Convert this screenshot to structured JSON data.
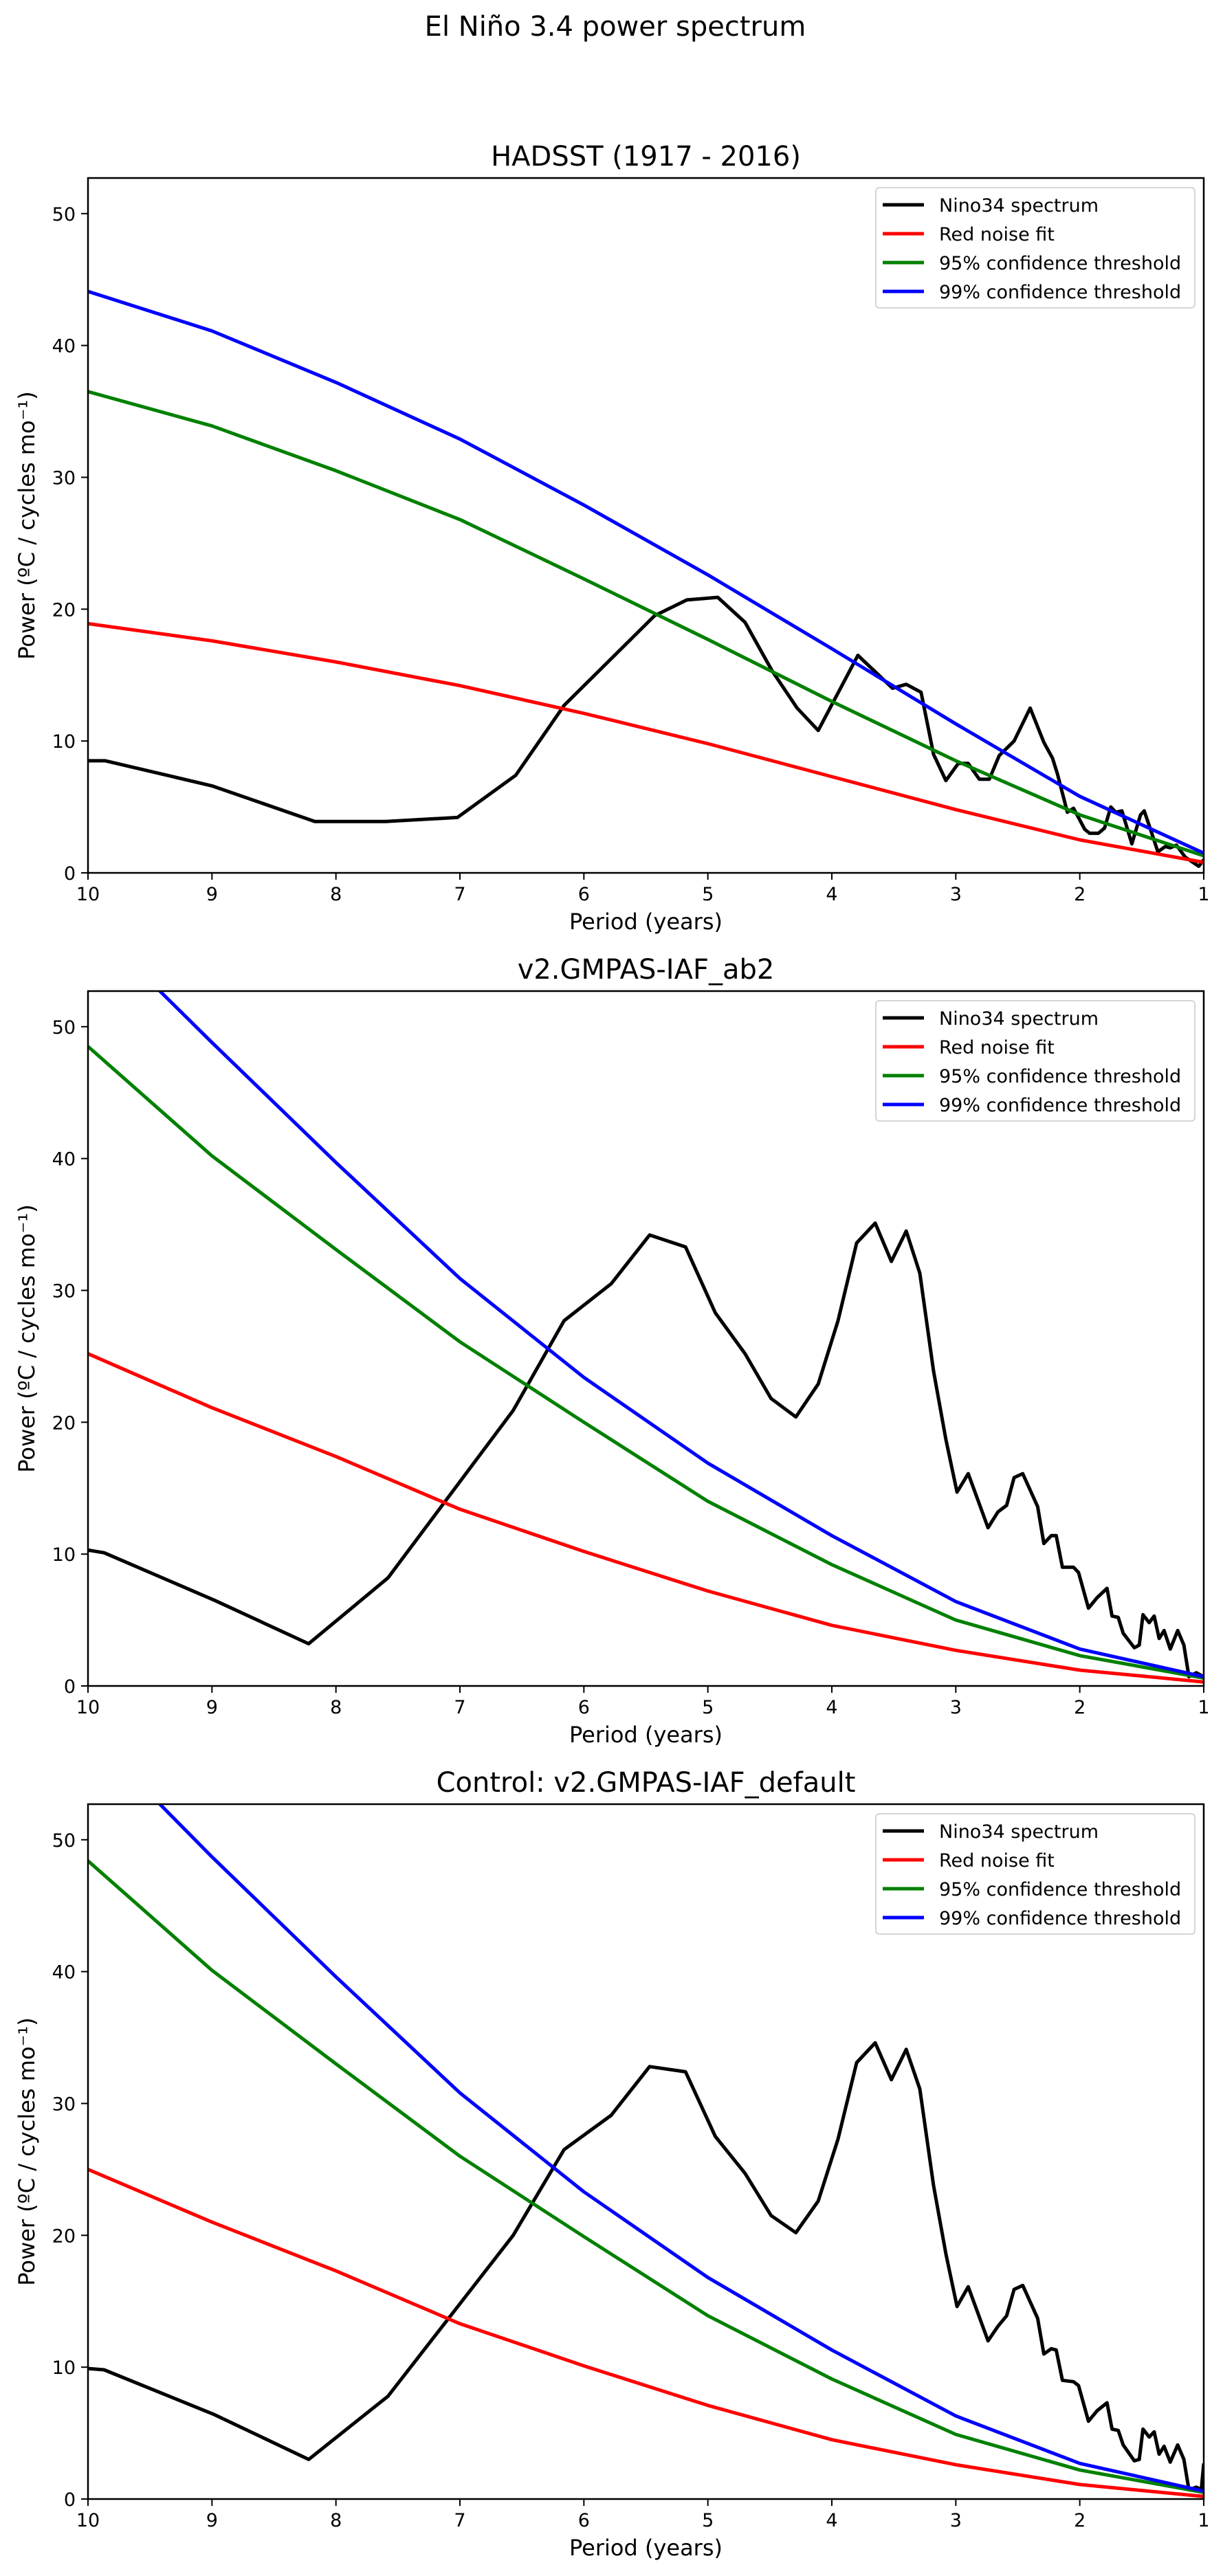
{
  "figure": {
    "title": "El Niño 3.4 power spectrum"
  },
  "chart_data": [
    {
      "type": "line",
      "title": "HADSST (1917 - 2016)",
      "xlabel": "Period (years)",
      "ylabel": "Power (ºC / cycles mo⁻¹)",
      "xlim": [
        10,
        1
      ],
      "ylim": [
        0,
        52.7
      ],
      "xticks": [
        10,
        9,
        8,
        7,
        6,
        5,
        4,
        3,
        2,
        1
      ],
      "yticks": [
        0,
        10,
        20,
        30,
        40,
        50
      ],
      "grid": false,
      "legend_position": "top-right",
      "series": [
        {
          "name": "Nino34 spectrum",
          "color": "#000000",
          "x": [
            10.0,
            9.86,
            9.0,
            8.17,
            7.6,
            7.02,
            6.55,
            6.16,
            5.43,
            5.17,
            4.92,
            4.7,
            4.48,
            4.28,
            4.11,
            3.79,
            3.51,
            3.4,
            3.28,
            3.18,
            3.08,
            2.98,
            2.9,
            2.81,
            2.73,
            2.65,
            2.53,
            2.4,
            2.29,
            2.22,
            2.18,
            2.1,
            2.05,
            1.96,
            1.92,
            1.85,
            1.8,
            1.75,
            1.71,
            1.66,
            1.58,
            1.51,
            1.48,
            1.43,
            1.37,
            1.31,
            1.27,
            1.22,
            1.15,
            1.04,
            1.0
          ],
          "y": [
            8.5,
            8.5,
            6.6,
            3.9,
            3.9,
            4.2,
            7.4,
            12.7,
            19.5,
            20.7,
            20.9,
            19.0,
            15.3,
            12.5,
            10.8,
            16.5,
            14.0,
            14.3,
            13.7,
            9.0,
            7.0,
            8.3,
            8.3,
            7.1,
            7.1,
            8.9,
            10.0,
            12.5,
            9.9,
            8.7,
            7.5,
            4.6,
            4.9,
            3.3,
            3.0,
            3.0,
            3.4,
            5.0,
            4.6,
            4.7,
            2.2,
            4.4,
            4.7,
            3.3,
            1.6,
            2.0,
            1.9,
            2.1,
            1.2,
            0.5,
            1.0
          ]
        },
        {
          "name": "Red noise fit",
          "color": "#ff0000",
          "x": [
            10,
            9,
            8,
            7,
            6,
            5,
            4,
            3,
            2,
            1
          ],
          "y": [
            18.9,
            17.6,
            16.0,
            14.2,
            12.1,
            9.8,
            7.3,
            4.8,
            2.5,
            0.8
          ]
        },
        {
          "name": "95% confidence threshold",
          "color": "#008000",
          "x": [
            10,
            9,
            8,
            7,
            6,
            5,
            4,
            3,
            2,
            1
          ],
          "y": [
            36.5,
            33.9,
            30.5,
            26.8,
            22.3,
            17.7,
            13.0,
            8.5,
            4.4,
            1.3
          ]
        },
        {
          "name": "99% confidence threshold",
          "color": "#0000ff",
          "x": [
            10,
            9,
            8,
            7,
            6,
            5,
            4,
            3,
            2,
            1
          ],
          "y": [
            44.1,
            41.1,
            37.2,
            32.9,
            27.9,
            22.6,
            17.0,
            11.3,
            5.8,
            1.5
          ]
        }
      ]
    },
    {
      "type": "line",
      "title": "v2.GMPAS-IAF_ab2",
      "xlabel": "Period (years)",
      "ylabel": "Power (ºC / cycles mo⁻¹)",
      "xlim": [
        10,
        1
      ],
      "ylim": [
        0,
        52.7
      ],
      "xticks": [
        10,
        9,
        8,
        7,
        6,
        5,
        4,
        3,
        2,
        1
      ],
      "yticks": [
        0,
        10,
        20,
        30,
        40,
        50
      ],
      "grid": false,
      "legend_position": "top-right",
      "series": [
        {
          "name": "Nino34 spectrum",
          "color": "#000000",
          "x": [
            10.0,
            9.87,
            8.98,
            8.22,
            7.58,
            6.57,
            6.16,
            5.78,
            5.47,
            5.18,
            4.94,
            4.7,
            4.49,
            4.29,
            4.11,
            3.95,
            3.8,
            3.65,
            3.52,
            3.4,
            3.29,
            3.18,
            3.08,
            2.99,
            2.9,
            2.74,
            2.66,
            2.59,
            2.53,
            2.46,
            2.34,
            2.29,
            2.23,
            2.19,
            2.14,
            2.05,
            2.01,
            1.93,
            1.86,
            1.78,
            1.74,
            1.69,
            1.65,
            1.56,
            1.52,
            1.49,
            1.44,
            1.4,
            1.36,
            1.32,
            1.27,
            1.21,
            1.16,
            1.12,
            1.06,
            1.0
          ],
          "y": [
            10.3,
            10.1,
            6.5,
            3.2,
            8.2,
            20.9,
            27.7,
            30.5,
            34.2,
            33.3,
            28.3,
            25.2,
            21.8,
            20.4,
            22.9,
            27.7,
            33.6,
            35.1,
            32.2,
            34.5,
            31.3,
            23.9,
            18.7,
            14.7,
            16.1,
            12.0,
            13.2,
            13.7,
            15.8,
            16.1,
            13.6,
            10.8,
            11.4,
            11.4,
            9.0,
            9.0,
            8.6,
            5.9,
            6.7,
            7.4,
            5.3,
            5.2,
            4.0,
            2.9,
            3.1,
            5.4,
            4.8,
            5.3,
            3.6,
            4.2,
            2.8,
            4.2,
            3.1,
            0.7,
            1.0,
            0.7
          ]
        },
        {
          "name": "Red noise fit",
          "color": "#ff0000",
          "x": [
            10,
            9,
            8,
            7,
            6,
            5,
            4,
            3,
            2,
            1
          ],
          "y": [
            25.2,
            21.1,
            17.4,
            13.4,
            10.2,
            7.2,
            4.6,
            2.7,
            1.2,
            0.3
          ]
        },
        {
          "name": "95% confidence threshold",
          "color": "#008000",
          "x": [
            10,
            9,
            8,
            7,
            6,
            5,
            4,
            3,
            2,
            1
          ],
          "y": [
            48.5,
            40.2,
            33.1,
            26.1,
            20.0,
            14.0,
            9.2,
            5.0,
            2.3,
            0.6
          ]
        },
        {
          "name": "99% confidence threshold",
          "color": "#0000ff",
          "x": [
            10,
            9.42,
            9,
            8,
            7,
            6,
            5,
            4,
            3,
            2,
            1
          ],
          "y": [
            58.5,
            52.7,
            48.8,
            39.7,
            30.9,
            23.4,
            16.9,
            11.4,
            6.4,
            2.8,
            0.7
          ]
        }
      ]
    },
    {
      "type": "line",
      "title": "Control: v2.GMPAS-IAF_default",
      "xlabel": "Period (years)",
      "ylabel": "Power (ºC / cycles mo⁻¹)",
      "xlim": [
        10,
        1
      ],
      "ylim": [
        0,
        52.7
      ],
      "xticks": [
        10,
        9,
        8,
        7,
        6,
        5,
        4,
        3,
        2,
        1
      ],
      "yticks": [
        0,
        10,
        20,
        30,
        40,
        50
      ],
      "grid": false,
      "legend_position": "top-right",
      "series": [
        {
          "name": "Nino34 spectrum",
          "color": "#000000",
          "x": [
            10.0,
            9.87,
            8.98,
            8.22,
            7.58,
            6.57,
            6.16,
            5.78,
            5.47,
            5.18,
            4.94,
            4.7,
            4.49,
            4.29,
            4.11,
            3.95,
            3.8,
            3.65,
            3.52,
            3.4,
            3.29,
            3.18,
            3.08,
            2.99,
            2.9,
            2.74,
            2.66,
            2.59,
            2.53,
            2.46,
            2.34,
            2.29,
            2.23,
            2.19,
            2.14,
            2.05,
            2.01,
            1.93,
            1.86,
            1.78,
            1.74,
            1.69,
            1.65,
            1.56,
            1.52,
            1.49,
            1.44,
            1.4,
            1.36,
            1.32,
            1.27,
            1.21,
            1.16,
            1.12,
            1.06,
            1.02,
            1.0
          ],
          "y": [
            9.9,
            9.8,
            6.4,
            3.0,
            7.8,
            20.0,
            26.5,
            29.1,
            32.8,
            32.4,
            27.5,
            24.7,
            21.5,
            20.2,
            22.6,
            27.3,
            33.1,
            34.6,
            31.8,
            34.1,
            31.1,
            23.8,
            18.6,
            14.6,
            16.1,
            12.0,
            13.1,
            13.9,
            15.9,
            16.2,
            13.7,
            11.0,
            11.4,
            11.3,
            9.0,
            8.9,
            8.6,
            5.9,
            6.7,
            7.3,
            5.3,
            5.2,
            4.1,
            2.9,
            3.0,
            5.3,
            4.7,
            5.1,
            3.4,
            4.0,
            2.8,
            4.1,
            3.0,
            0.7,
            0.9,
            0.7,
            2.7
          ]
        },
        {
          "name": "Red noise fit",
          "color": "#ff0000",
          "x": [
            10,
            9,
            8,
            7,
            6,
            5,
            4,
            3,
            2,
            1
          ],
          "y": [
            25.0,
            21.0,
            17.3,
            13.3,
            10.1,
            7.1,
            4.5,
            2.6,
            1.1,
            0.2
          ]
        },
        {
          "name": "95% confidence threshold",
          "color": "#008000",
          "x": [
            10,
            9,
            8,
            7,
            6,
            5,
            4,
            3,
            2,
            1
          ],
          "y": [
            48.4,
            40.1,
            33.0,
            26.0,
            19.9,
            13.9,
            9.1,
            4.9,
            2.2,
            0.5
          ]
        },
        {
          "name": "99% confidence threshold",
          "color": "#0000ff",
          "x": [
            10,
            9.42,
            9,
            8,
            7,
            6,
            5,
            4,
            3,
            2,
            1
          ],
          "y": [
            58.4,
            52.7,
            48.7,
            39.6,
            30.8,
            23.3,
            16.8,
            11.3,
            6.3,
            2.7,
            0.6
          ]
        }
      ]
    }
  ]
}
